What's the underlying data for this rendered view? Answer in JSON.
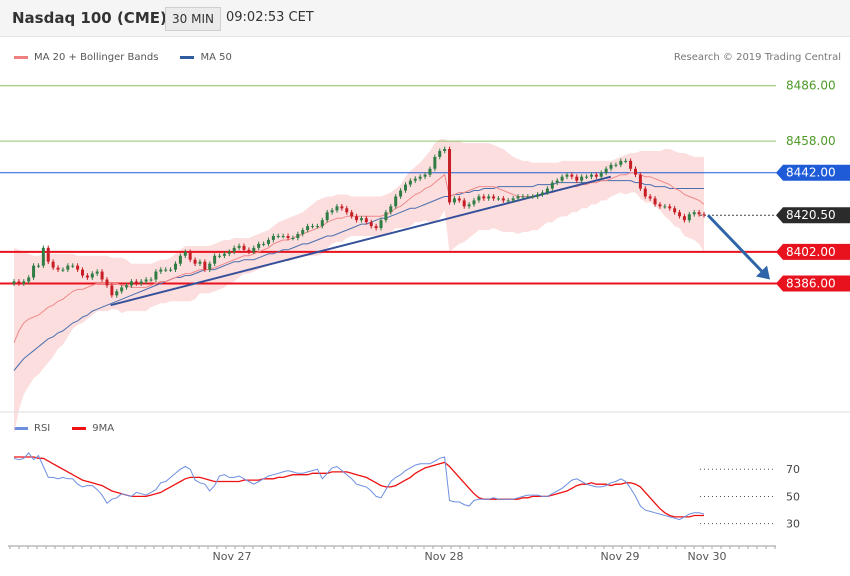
{
  "header": {
    "title": "Nasdaq 100 (CME)",
    "timeframe": "30 MIN",
    "time": "09:02:53 CET"
  },
  "credit": "Research © 2019 Trading Central",
  "legend_main": [
    {
      "label": "MA 20 + Bollinger Bands",
      "color": "#f08080"
    },
    {
      "label": "MA 50",
      "color": "#2e5c9e"
    }
  ],
  "legend_rsi": [
    {
      "label": "RSI",
      "color": "#6d8fe0"
    },
    {
      "label": "9MA",
      "color": "#ee1111"
    }
  ],
  "colors": {
    "green_level": "#8cc56a",
    "blue_level": "#1f5bd6",
    "red_level": "#e8121e",
    "trendline": "#35509a",
    "arrow": "#2e64a8",
    "up_candle": "#2f7d44",
    "down_candle": "#c71e26",
    "band_fill": "#fbd3d3"
  },
  "chart_data": [
    {
      "type": "line",
      "name": "price",
      "ylim": [
        8322,
        8498
      ],
      "x_tick_labels": [
        "Nov 27",
        "Nov 28",
        "Nov 29",
        "Nov 30"
      ],
      "levels": [
        {
          "value": 8486.0,
          "label": "8486.00",
          "kind": "resistance",
          "color": "green"
        },
        {
          "value": 8458.0,
          "label": "8458.00",
          "kind": "resistance",
          "color": "green"
        },
        {
          "value": 8442.0,
          "label": "8442.00",
          "kind": "pivot",
          "color": "blue"
        },
        {
          "value": 8420.5,
          "label": "8420.50",
          "kind": "last",
          "color": "dark"
        },
        {
          "value": 8402.0,
          "label": "8402.00",
          "kind": "support",
          "color": "red"
        },
        {
          "value": 8386.0,
          "label": "8386.00",
          "kind": "support",
          "color": "red"
        }
      ],
      "trendline": [
        [
          0.14,
          8375
        ],
        [
          0.865,
          8440
        ]
      ],
      "close": [
        8387,
        8386,
        8387,
        8389,
        8395,
        8395,
        8404,
        8397,
        8394,
        8393,
        8393,
        8395,
        8395,
        8393,
        8390,
        8389,
        8391,
        8392,
        8388,
        8385,
        8380,
        8382,
        8384,
        8385,
        8387,
        8386,
        8387,
        8388,
        8388,
        8392,
        8393,
        8393,
        8393,
        8396,
        8400,
        8402,
        8398,
        8396,
        8397,
        8393,
        8396,
        8400,
        8400,
        8401,
        8402,
        8404,
        8405,
        8403,
        8402,
        8404,
        8406,
        8406,
        8408,
        8410,
        8410,
        8410,
        8409,
        8409,
        8411,
        8413,
        8415,
        8415,
        8415,
        8418,
        8422,
        8423,
        8425,
        8424,
        8422,
        8420,
        8418,
        8419,
        8417,
        8415,
        8414,
        8418,
        8422,
        8425,
        8430,
        8433,
        8436,
        8438,
        8439,
        8440,
        8441,
        8444,
        8450,
        8453,
        8454,
        8427,
        8429,
        8428,
        8425,
        8426,
        8428,
        8430,
        8429,
        8430,
        8429,
        8429,
        8428,
        8428,
        8429,
        8430,
        8430,
        8430,
        8430,
        8431,
        8432,
        8434,
        8437,
        8438,
        8440,
        8441,
        8440,
        8438,
        8440,
        8440,
        8441,
        8440,
        8442,
        8444,
        8446,
        8446,
        8448,
        8448,
        8444,
        8441,
        8434,
        8430,
        8429,
        8426,
        8425,
        8425,
        8424,
        8422,
        8420,
        8418,
        8421,
        8422,
        8421,
        8420.5
      ],
      "ma20": [
        8356,
        8362,
        8366,
        8368,
        8369,
        8370,
        8372,
        8374,
        8375,
        8377,
        8378,
        8380,
        8382,
        8383,
        8383,
        8384,
        8385,
        8386,
        8386,
        8386,
        8386,
        8386,
        8385,
        8385,
        8384,
        8384,
        8384,
        8384,
        8385,
        8386,
        8387,
        8387,
        8388,
        8389,
        8390,
        8391,
        8391,
        8392,
        8393,
        8393,
        8393,
        8394,
        8395,
        8396,
        8397,
        8398,
        8399,
        8400,
        8400,
        8401,
        8402,
        8403,
        8404,
        8406,
        8407,
        8408,
        8408,
        8409,
        8410,
        8411,
        8412,
        8413,
        8414,
        8415,
        8417,
        8418,
        8419,
        8419,
        8420,
        8420,
        8420,
        8420,
        8420,
        8420,
        8420,
        8420,
        8421,
        8422,
        8424,
        8425,
        8427,
        8429,
        8431,
        8432,
        8434,
        8435,
        8437,
        8439,
        8441,
        8430,
        8431,
        8432,
        8432,
        8433,
        8434,
        8435,
        8435,
        8435,
        8435,
        8434,
        8433,
        8432,
        8431,
        8430,
        8430,
        8430,
        8430,
        8430,
        8431,
        8432,
        8432,
        8433,
        8434,
        8434,
        8435,
        8435,
        8436,
        8436,
        8437,
        8437,
        8438,
        8438,
        8439,
        8440,
        8441,
        8441,
        8442,
        8442,
        8441,
        8440,
        8440,
        8439,
        8438,
        8437,
        8436,
        8434,
        8433,
        8431,
        8430,
        8429,
        8428,
        8426
      ],
      "bb_upper": [
        8404,
        8403,
        8402,
        8401,
        8400,
        8400,
        8401,
        8401,
        8401,
        8401,
        8401,
        8401,
        8401,
        8400,
        8400,
        8400,
        8400,
        8400,
        8400,
        8400,
        8399,
        8399,
        8399,
        8398,
        8396,
        8396,
        8396,
        8396,
        8396,
        8397,
        8398,
        8398,
        8399,
        8401,
        8403,
        8405,
        8405,
        8405,
        8405,
        8405,
        8405,
        8406,
        8407,
        8408,
        8408,
        8409,
        8409,
        8409,
        8409,
        8410,
        8411,
        8412,
        8413,
        8415,
        8417,
        8418,
        8419,
        8420,
        8421,
        8422,
        8424,
        8426,
        8428,
        8429,
        8430,
        8430,
        8431,
        8431,
        8431,
        8430,
        8430,
        8430,
        8430,
        8430,
        8430,
        8430,
        8431,
        8432,
        8434,
        8436,
        8440,
        8443,
        8445,
        8447,
        8450,
        8453,
        8457,
        8459,
        8459,
        8458,
        8458,
        8458,
        8457,
        8457,
        8457,
        8457,
        8457,
        8457,
        8456,
        8455,
        8454,
        8452,
        8450,
        8449,
        8448,
        8448,
        8447,
        8447,
        8447,
        8447,
        8447,
        8447,
        8448,
        8448,
        8448,
        8448,
        8448,
        8448,
        8448,
        8448,
        8448,
        8448,
        8448,
        8449,
        8450,
        8451,
        8452,
        8452,
        8453,
        8453,
        8453,
        8453,
        8453,
        8454,
        8454,
        8453,
        8452,
        8452,
        8451,
        8450,
        8450,
        8450
      ],
      "bb_lower": [
        8310,
        8322,
        8330,
        8334,
        8338,
        8340,
        8343,
        8346,
        8349,
        8353,
        8355,
        8359,
        8363,
        8365,
        8366,
        8368,
        8370,
        8372,
        8372,
        8372,
        8373,
        8373,
        8371,
        8372,
        8372,
        8372,
        8372,
        8372,
        8374,
        8375,
        8376,
        8376,
        8377,
        8377,
        8377,
        8377,
        8377,
        8378,
        8381,
        8381,
        8381,
        8382,
        8383,
        8384,
        8386,
        8387,
        8389,
        8391,
        8391,
        8392,
        8393,
        8394,
        8395,
        8397,
        8397,
        8398,
        8397,
        8398,
        8399,
        8400,
        8400,
        8400,
        8400,
        8401,
        8404,
        8406,
        8407,
        8407,
        8409,
        8410,
        8410,
        8410,
        8410,
        8410,
        8410,
        8410,
        8411,
        8412,
        8414,
        8414,
        8414,
        8415,
        8417,
        8417,
        8418,
        8417,
        8417,
        8419,
        8423,
        8402,
        8404,
        8406,
        8407,
        8409,
        8411,
        8413,
        8413,
        8413,
        8414,
        8413,
        8412,
        8412,
        8412,
        8411,
        8412,
        8412,
        8413,
        8413,
        8415,
        8417,
        8417,
        8419,
        8420,
        8420,
        8422,
        8422,
        8424,
        8424,
        8426,
        8426,
        8428,
        8428,
        8430,
        8431,
        8432,
        8431,
        8432,
        8432,
        8429,
        8427,
        8427,
        8425,
        8423,
        8420,
        8418,
        8415,
        8414,
        8410,
        8409,
        8408,
        8406,
        8402
      ],
      "ma50": [
        8342,
        8345,
        8348,
        8350,
        8352,
        8354,
        8356,
        8358,
        8359,
        8361,
        8362,
        8364,
        8366,
        8367,
        8369,
        8370,
        8372,
        8373,
        8374,
        8375,
        8376,
        8377,
        8378,
        8379,
        8380,
        8381,
        8382,
        8383,
        8384,
        8385,
        8386,
        8387,
        8388,
        8389,
        8389,
        8390,
        8390,
        8391,
        8392,
        8393,
        8393,
        8393,
        8394,
        8395,
        8396,
        8397,
        8397,
        8398,
        8398,
        8398,
        8399,
        8400,
        8401,
        8401,
        8402,
        8403,
        8403,
        8404,
        8405,
        8406,
        8406,
        8407,
        8408,
        8409,
        8410,
        8410,
        8411,
        8412,
        8413,
        8414,
        8415,
        8416,
        8416,
        8417,
        8418,
        8419,
        8419,
        8420,
        8421,
        8422,
        8423,
        8424,
        8424,
        8425,
        8426,
        8427,
        8428,
        8429,
        8430,
        8430,
        8431,
        8431,
        8432,
        8432,
        8433,
        8433,
        8434,
        8434,
        8434,
        8435,
        8435,
        8435,
        8435,
        8435,
        8435,
        8435,
        8435,
        8436,
        8436,
        8436,
        8436,
        8437,
        8437,
        8437,
        8437,
        8437,
        8437,
        8437,
        8437,
        8438,
        8438,
        8438,
        8438,
        8438,
        8438,
        8438,
        8438,
        8437,
        8437,
        8436,
        8436,
        8435,
        8435,
        8435,
        8434,
        8434,
        8434,
        8434,
        8434,
        8434,
        8434,
        8434
      ]
    },
    {
      "type": "line",
      "name": "rsi",
      "ylim": [
        18,
        90
      ],
      "yticks": [
        30,
        50,
        70
      ],
      "rsi": [
        78,
        77,
        78,
        82,
        77,
        80,
        72,
        64,
        64,
        63,
        64,
        63,
        63,
        59,
        57,
        58,
        58,
        55,
        51,
        45,
        48,
        49,
        52,
        51,
        50,
        53,
        52,
        51,
        53,
        55,
        60,
        61,
        64,
        67,
        70,
        72,
        70,
        62,
        60,
        59,
        54,
        58,
        65,
        66,
        64,
        64,
        65,
        63,
        61,
        59,
        61,
        63,
        65,
        66,
        67,
        68,
        69,
        68,
        67,
        67,
        68,
        69,
        70,
        63,
        67,
        71,
        72,
        69,
        66,
        63,
        59,
        58,
        57,
        54,
        50,
        49,
        55,
        61,
        64,
        66,
        69,
        71,
        73,
        74,
        74,
        74,
        76,
        78,
        79,
        47,
        46,
        46,
        44,
        43,
        47,
        48,
        48,
        48,
        49,
        48,
        48,
        48,
        48,
        49,
        50,
        51,
        51,
        51,
        50,
        50,
        52,
        54,
        56,
        59,
        62,
        63,
        61,
        59,
        58,
        57,
        57,
        58,
        60,
        61,
        63,
        61,
        56,
        50,
        43,
        40,
        39,
        38,
        37,
        36,
        35,
        34,
        33,
        35,
        37,
        38,
        38,
        37
      ],
      "ma9": [
        79,
        79,
        79,
        79,
        79,
        78,
        78,
        76,
        74,
        72,
        70,
        68,
        66,
        64,
        62,
        61,
        60,
        59,
        58,
        56,
        54,
        53,
        52,
        51,
        50,
        50,
        50,
        50,
        51,
        52,
        53,
        55,
        57,
        59,
        61,
        63,
        64,
        64,
        64,
        63,
        62,
        61,
        61,
        61,
        61,
        61,
        61,
        62,
        62,
        62,
        62,
        63,
        63,
        63,
        64,
        64,
        65,
        66,
        66,
        66,
        66,
        67,
        67,
        67,
        67,
        68,
        68,
        68,
        68,
        67,
        66,
        65,
        64,
        62,
        60,
        58,
        57,
        57,
        58,
        60,
        62,
        64,
        67,
        69,
        71,
        72,
        73,
        74,
        75,
        72,
        68,
        64,
        60,
        56,
        52,
        49,
        48,
        48,
        48,
        48,
        48,
        48,
        48,
        48,
        49,
        49,
        50,
        50,
        50,
        50,
        51,
        52,
        53,
        54,
        56,
        58,
        59,
        59,
        60,
        59,
        59,
        59,
        58,
        59,
        59,
        60,
        60,
        59,
        57,
        53,
        49,
        45,
        41,
        38,
        36,
        35,
        35,
        35,
        35,
        36,
        36,
        36
      ]
    }
  ]
}
